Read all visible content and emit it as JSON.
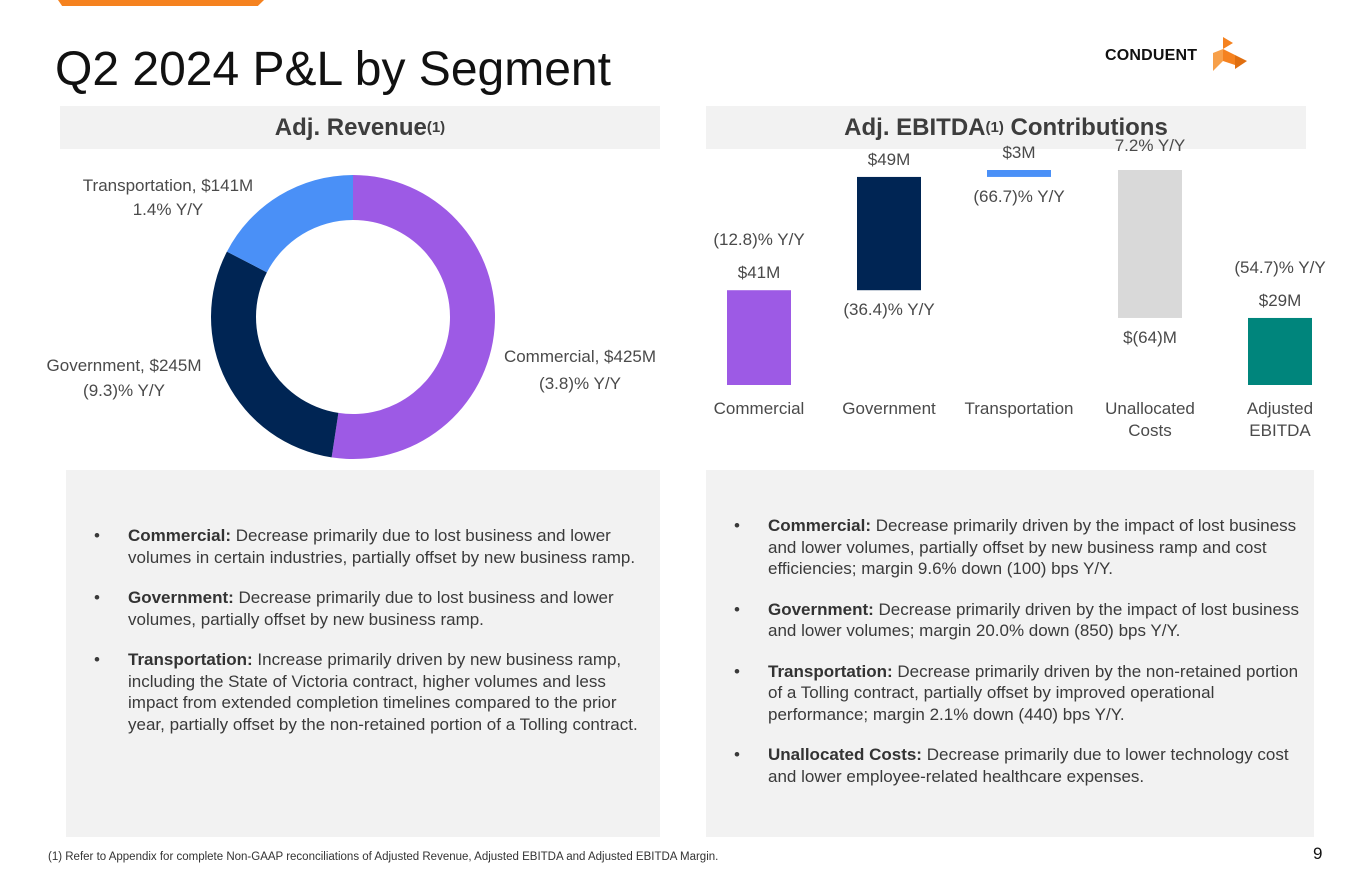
{
  "header": {
    "title": "Q2 2024 P&L by Segment",
    "logo_text": "CONDUENT",
    "accent_color": "#f5821f"
  },
  "revenue_panel": {
    "heading": "Adj. Revenue",
    "heading_sup": "(1)"
  },
  "ebitda_panel": {
    "heading_pre": "Adj. EBITDA",
    "heading_sup": "(1)",
    "heading_post": " Contributions"
  },
  "chart_data": [
    {
      "type": "pie",
      "variant": "donut",
      "slices": [
        {
          "label": "Commercial",
          "value_label": "Commercial, $425M",
          "value": 425,
          "yoy": "(3.8)% Y/Y",
          "color": "#9d5ae5"
        },
        {
          "label": "Government",
          "value_label": "Government, $245M",
          "value": 245,
          "yoy": "(9.3)% Y/Y",
          "color": "#002554"
        },
        {
          "label": "Transportation",
          "value_label": "Transportation, $141M",
          "value": 141,
          "yoy": "1.4% Y/Y",
          "color": "#4a90f7"
        }
      ]
    },
    {
      "type": "bar",
      "variant": "waterfall",
      "categories": [
        "Commercial",
        "Government",
        "Transportation",
        "Unallocated Costs",
        "Adjusted EBITDA"
      ],
      "category_lines": [
        [
          "Commercial"
        ],
        [
          "Government"
        ],
        [
          "Transportation"
        ],
        [
          "Unallocated",
          "Costs"
        ],
        [
          "Adjusted",
          "EBITDA"
        ]
      ],
      "values": [
        41,
        49,
        3,
        -64,
        29
      ],
      "value_labels": [
        "$41M",
        "$49M",
        "$3M",
        "$(64)M",
        "$29M"
      ],
      "yoy_labels": [
        "(12.8)% Y/Y",
        "(36.4)% Y/Y",
        "(66.7)% Y/Y",
        "7.2% Y/Y",
        "(54.7)% Y/Y"
      ],
      "colors": [
        "#9d5ae5",
        "#002554",
        "#4a90f7",
        "#d9d9d9",
        "#00857c"
      ],
      "ylim": [
        0,
        93
      ]
    }
  ],
  "revenue_bullets": [
    {
      "bold": "Commercial:",
      "text": " Decrease primarily due to lost business and lower volumes in certain industries, partially offset by new business ramp."
    },
    {
      "bold": "Government:",
      "text": " Decrease primarily due to lost business and lower volumes, partially offset by new business ramp."
    },
    {
      "bold": "Transportation:",
      "text": " Increase primarily driven by new business ramp, including the State of Victoria contract, higher volumes and less impact from extended completion timelines compared to the prior year, partially offset by the non-retained portion of a Tolling contract."
    }
  ],
  "ebitda_bullets": [
    {
      "bold": "Commercial:",
      "text": " Decrease primarily driven by the impact of lost business and lower volumes, partially offset by new business ramp and cost efficiencies; margin 9.6% down (100) bps Y/Y."
    },
    {
      "bold": "Government:",
      "text": " Decrease primarily driven by the impact of lost business and lower volumes; margin 20.0% down (850) bps Y/Y."
    },
    {
      "bold": "Transportation:",
      "text": " Decrease primarily driven by the non-retained portion of a Tolling contract, partially offset by improved operational performance; margin 2.1% down (440) bps Y/Y."
    },
    {
      "bold": "Unallocated Costs:",
      "text": " Decrease primarily due to lower technology cost and lower employee-related healthcare expenses."
    }
  ],
  "bullet_glyph": "•",
  "footnote": "(1) Refer to Appendix for complete Non-GAAP reconciliations of Adjusted Revenue, Adjusted EBITDA and Adjusted EBITDA Margin.",
  "page_number": "9"
}
